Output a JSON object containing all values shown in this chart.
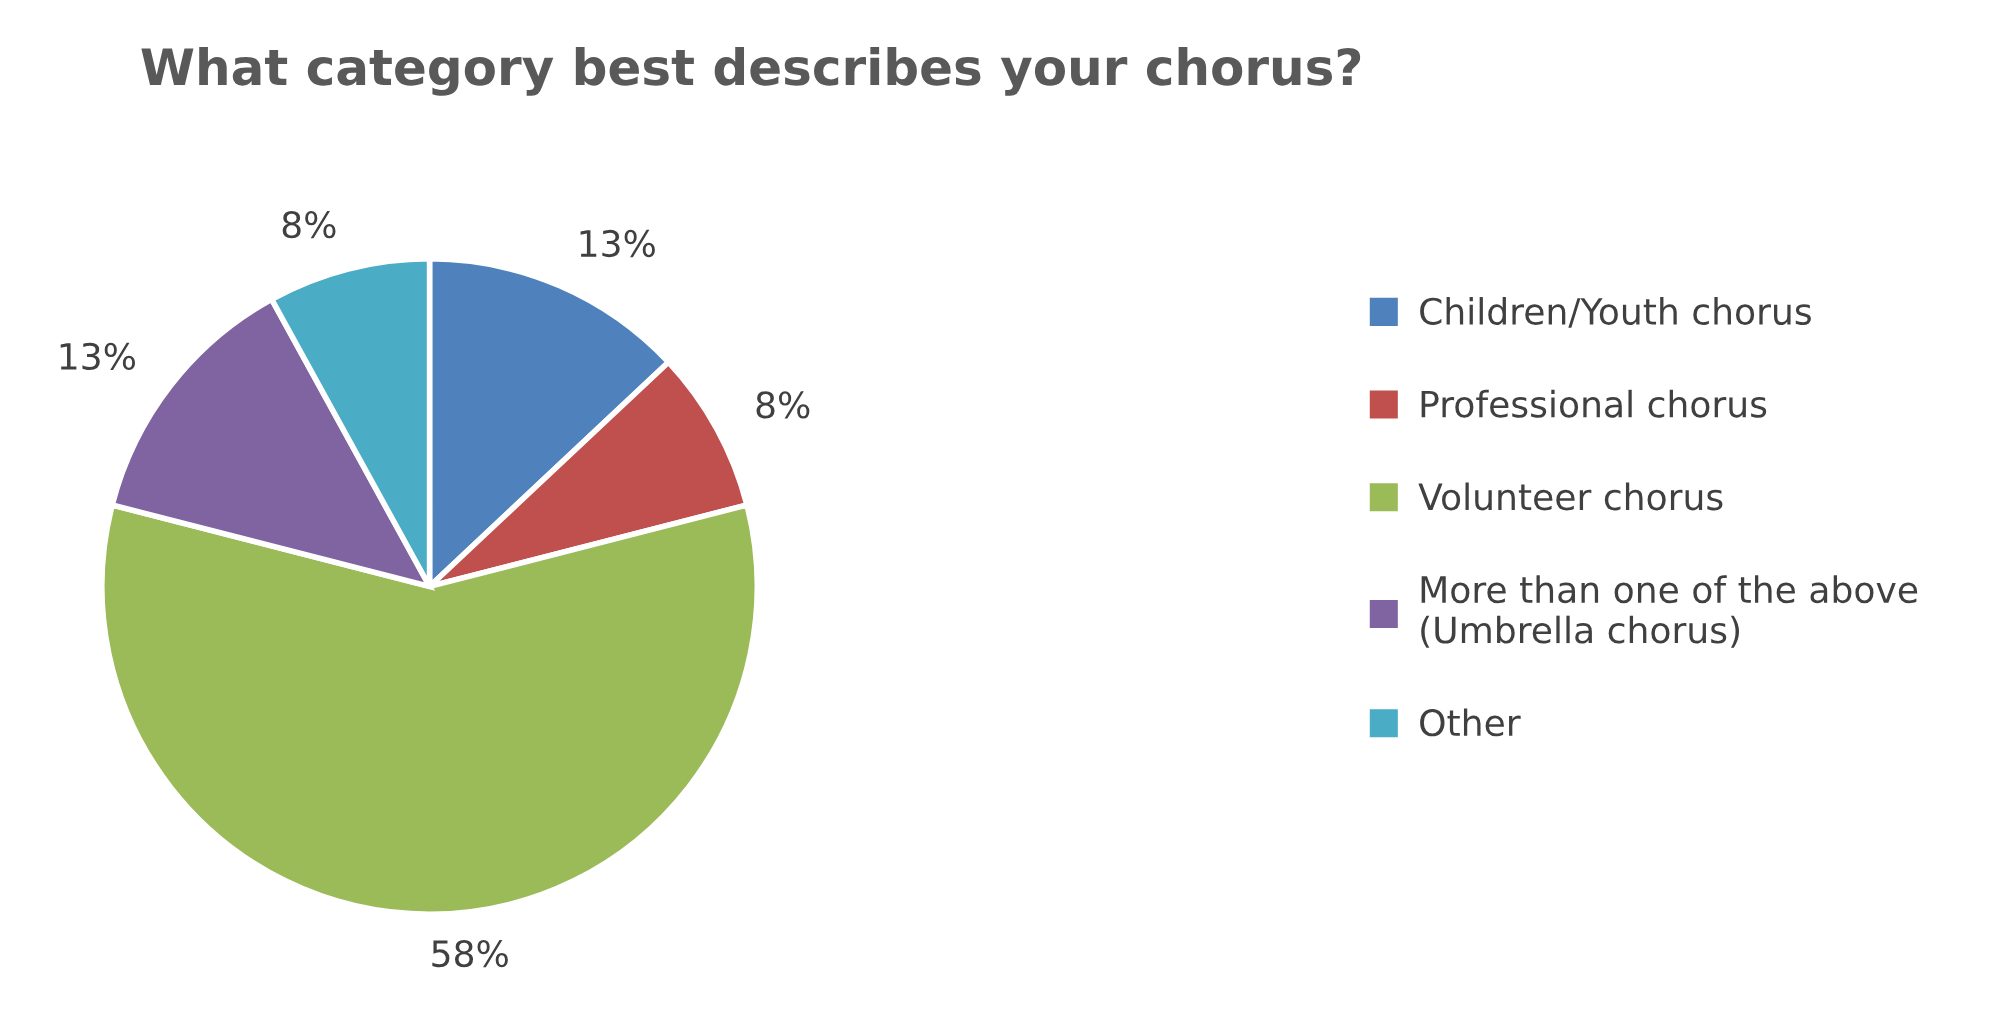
{
  "chart_data": {
    "type": "pie",
    "title": "What category best describes your chorus?",
    "categories": [
      "Children/Youth chorus",
      "Professional chorus",
      "Volunteer chorus",
      "More than one of the above\n(Umbrella chorus)",
      "Other"
    ],
    "values": [
      13,
      8,
      58,
      13,
      8
    ],
    "colors": [
      "#4f81bd",
      "#c0504d",
      "#9bbb59",
      "#8064a2",
      "#4bacc6"
    ],
    "value_labels": [
      "13%",
      "8%",
      "58%",
      "13%",
      "8%"
    ],
    "legend": "right"
  }
}
